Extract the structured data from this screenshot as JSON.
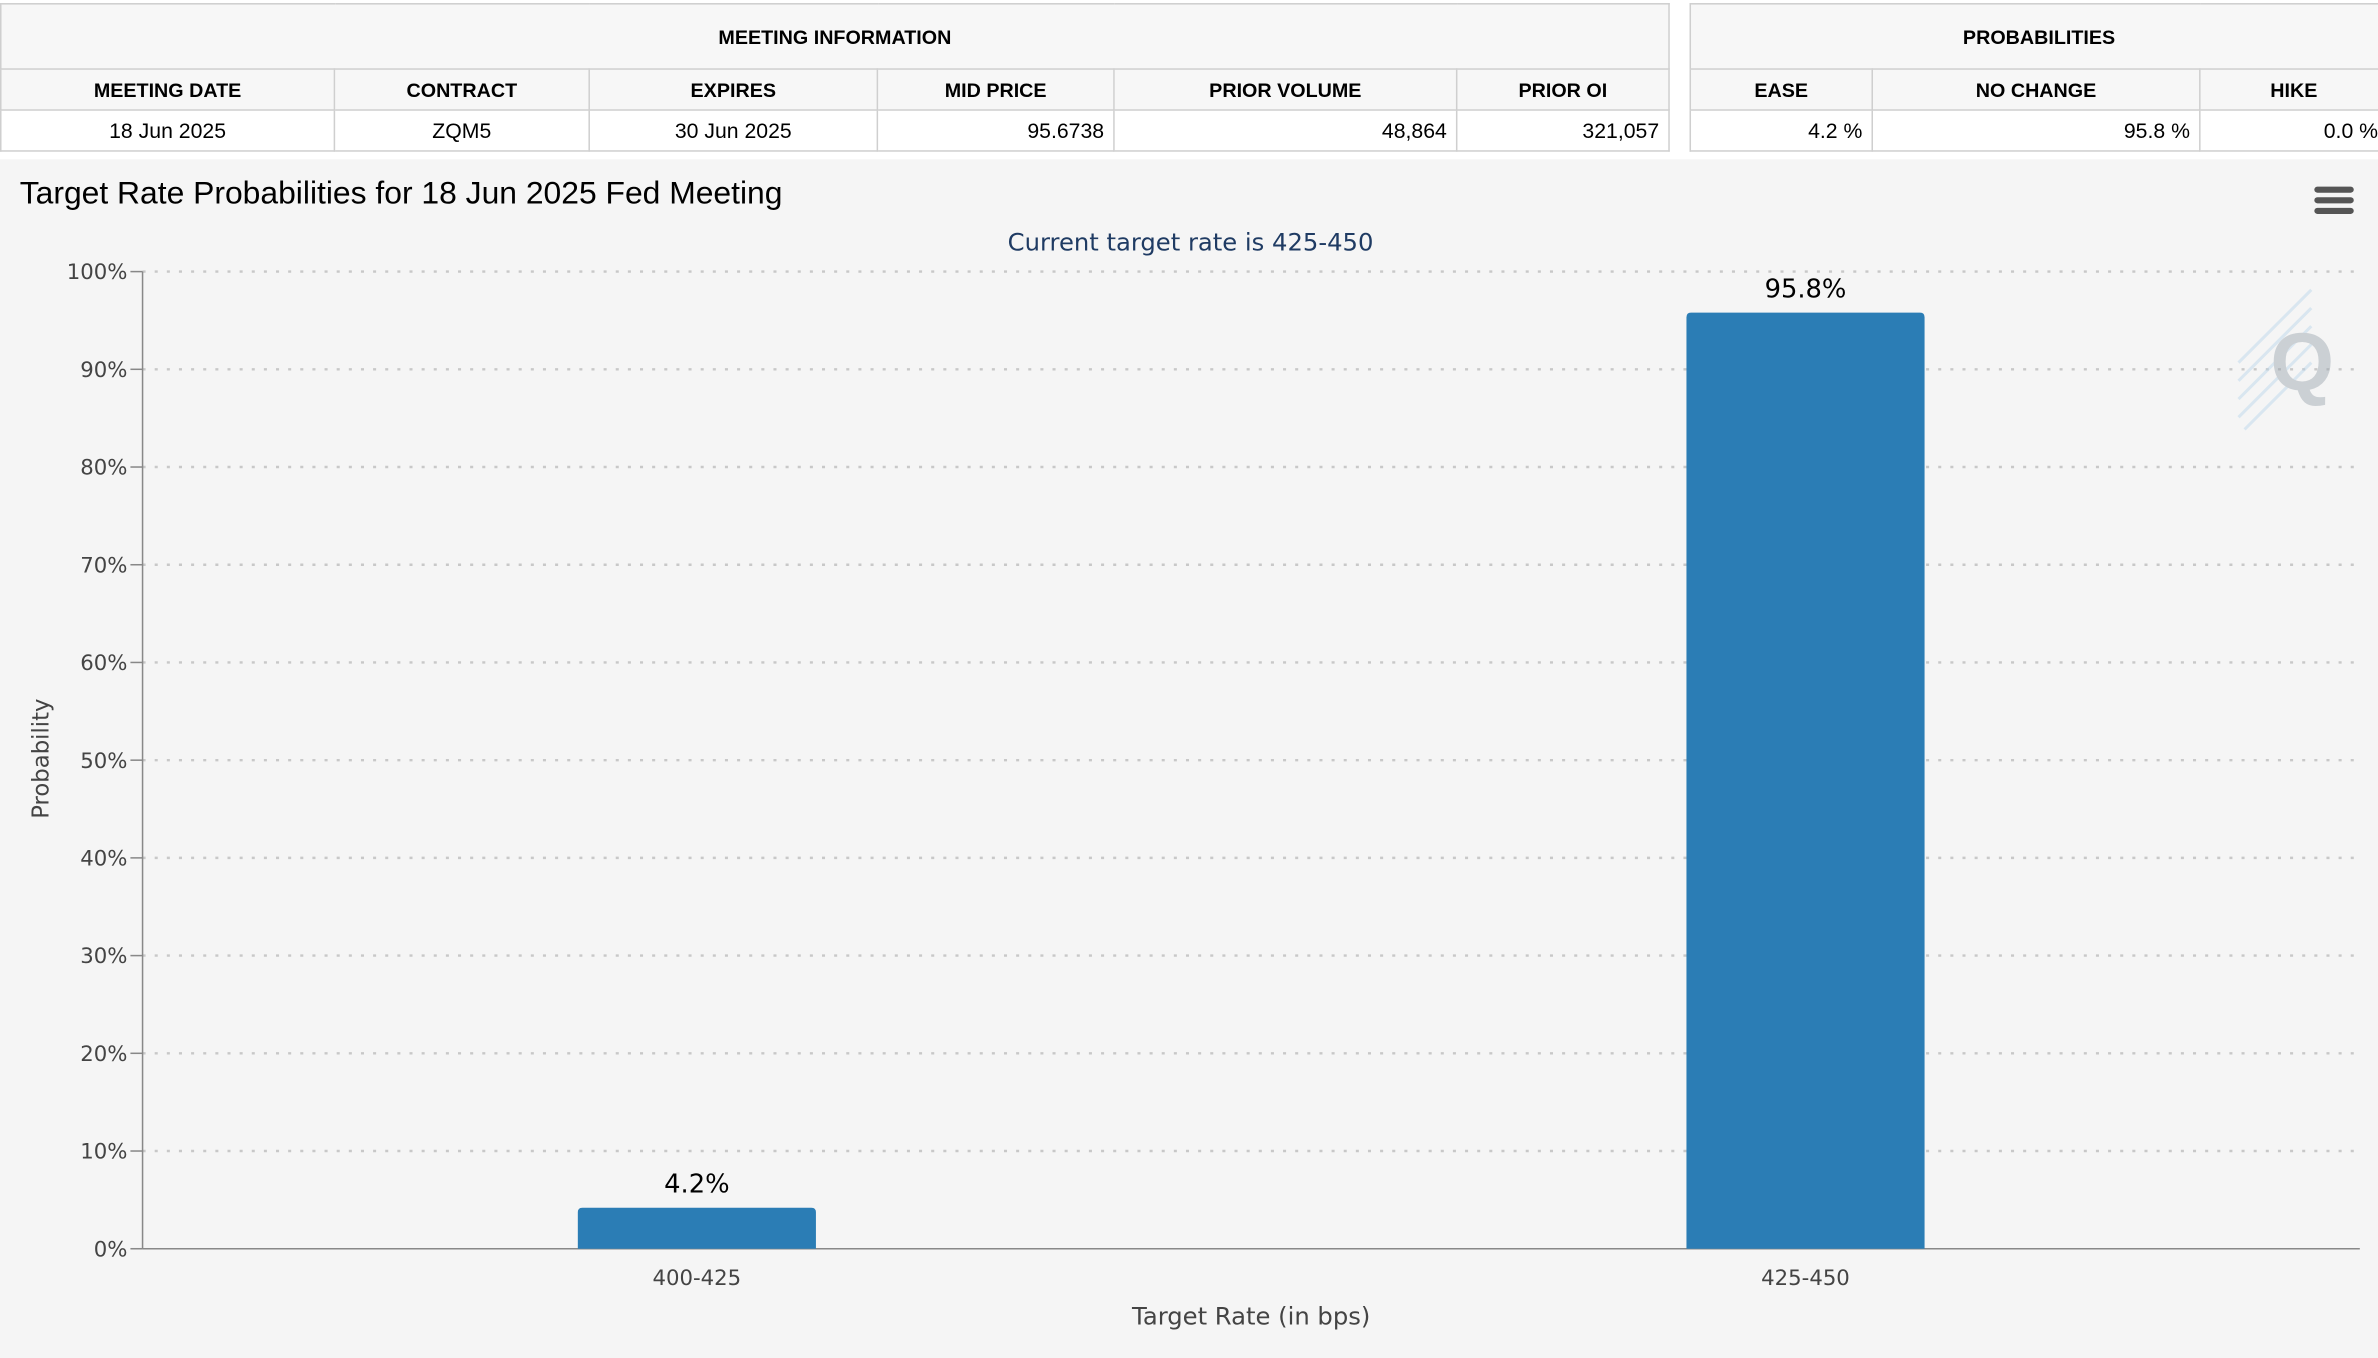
{
  "meeting_info": {
    "group_title": "MEETING INFORMATION",
    "headers": [
      "MEETING DATE",
      "CONTRACT",
      "EXPIRES",
      "MID PRICE",
      "PRIOR VOLUME",
      "PRIOR OI"
    ],
    "row": [
      "18 Jun 2025",
      "ZQM5",
      "30 Jun 2025",
      "95.6738",
      "48,864",
      "321,057"
    ]
  },
  "probabilities": {
    "group_title": "PROBABILITIES",
    "headers": [
      "EASE",
      "NO CHANGE",
      "HIKE"
    ],
    "row": [
      "4.2 %",
      "95.8 %",
      "0.0 %"
    ]
  },
  "chart_data": {
    "type": "bar",
    "title": "Target Rate Probabilities for 18 Jun 2025 Fed Meeting",
    "subtitle": "Current target rate is 425-450",
    "xlabel": "Target Rate (in bps)",
    "ylabel": "Probability",
    "categories": [
      "400-425",
      "425-450"
    ],
    "values": [
      4.2,
      95.8
    ],
    "data_labels": [
      "4.2%",
      "95.8%"
    ],
    "ylim": [
      0,
      100
    ],
    "yticks": [
      0,
      10,
      20,
      30,
      40,
      50,
      60,
      70,
      80,
      90,
      100
    ],
    "ytick_labels": [
      "0%",
      "10%",
      "20%",
      "30%",
      "40%",
      "50%",
      "60%",
      "70%",
      "80%",
      "90%",
      "100%"
    ],
    "grid": true,
    "legend": "none",
    "bar_color": "#2b7db5",
    "title_color": "#000000",
    "subtitle_color": "#1f3b63",
    "axis_text_color": "#444444"
  }
}
